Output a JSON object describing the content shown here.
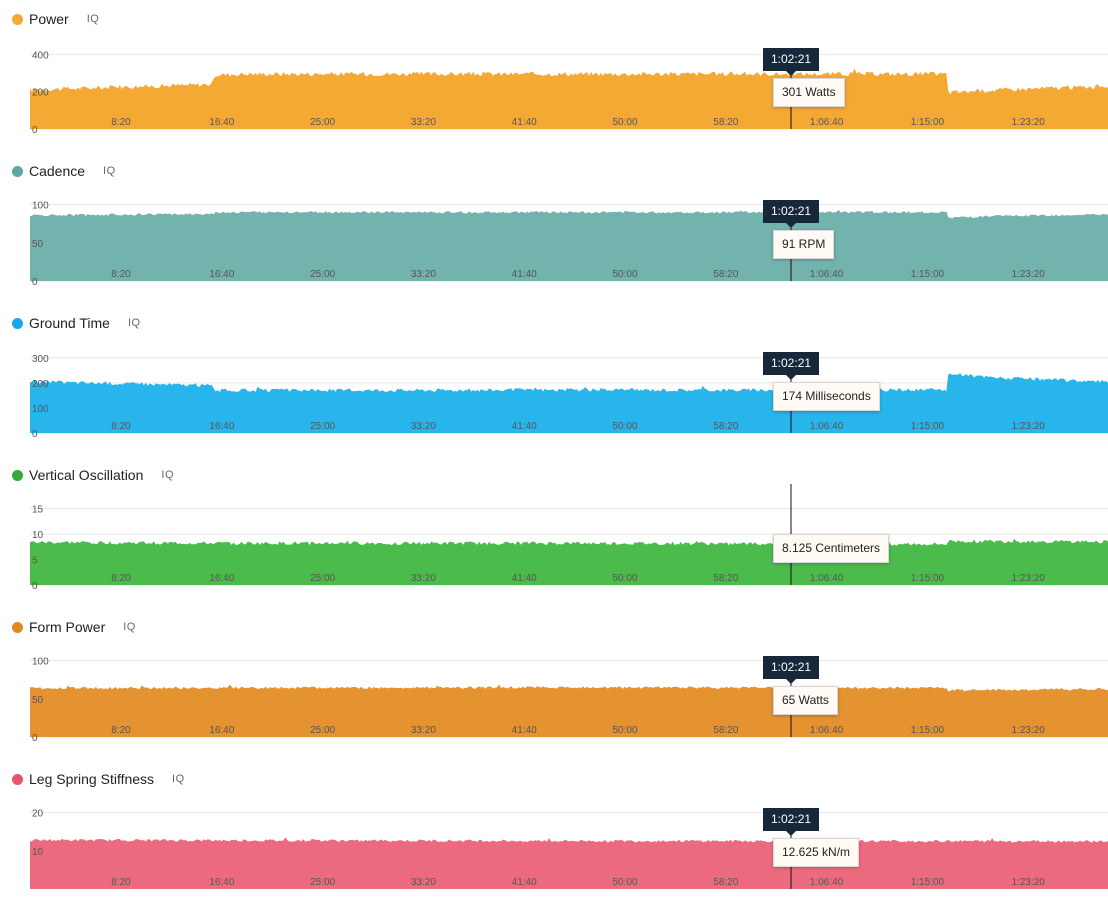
{
  "cursor_time": "1:02:21",
  "iq_label": "IQ",
  "x_ticks": [
    "8:20",
    "16:40",
    "25:00",
    "33:20",
    "41:40",
    "50:00",
    "58:20",
    "1:06:40",
    "1:15:00",
    "1:23:20"
  ],
  "panels": [
    {
      "id": "power",
      "title": "Power",
      "color": "#f5a935",
      "dot_color": "#f5a935",
      "y_ticks": [
        0,
        200,
        400
      ],
      "y_max": 450,
      "show_tip": true,
      "value_text": "301 Watts",
      "profile": [
        [
          0,
          210
        ],
        [
          0.17,
          240
        ],
        [
          0.171,
          290
        ],
        [
          0.2,
          295
        ],
        [
          0.5,
          295
        ],
        [
          0.85,
          295
        ],
        [
          0.851,
          195
        ],
        [
          0.9,
          210
        ],
        [
          1.0,
          230
        ]
      ],
      "noise": 12
    },
    {
      "id": "cadence",
      "title": "Cadence",
      "color": "#72b3ad",
      "dot_color": "#5ea8a2",
      "y_ticks": [
        0,
        50,
        100
      ],
      "y_max": 110,
      "show_tip": true,
      "value_text": "91 RPM",
      "profile": [
        [
          0,
          86
        ],
        [
          0.17,
          88
        ],
        [
          0.171,
          90
        ],
        [
          0.85,
          90
        ],
        [
          0.851,
          83
        ],
        [
          0.9,
          85
        ],
        [
          1.0,
          87
        ]
      ],
      "noise": 1.5
    },
    {
      "id": "ground_time",
      "title": "Ground Time",
      "color": "#27b5ec",
      "dot_color": "#1aa9e8",
      "y_ticks": [
        0,
        100,
        200,
        300
      ],
      "y_max": 335,
      "show_tip": true,
      "value_text": "174 Milliseconds",
      "profile": [
        [
          0,
          205
        ],
        [
          0.17,
          190
        ],
        [
          0.171,
          170
        ],
        [
          0.5,
          172
        ],
        [
          0.85,
          172
        ],
        [
          0.851,
          235
        ],
        [
          0.9,
          220
        ],
        [
          1.0,
          205
        ]
      ],
      "noise": 7
    },
    {
      "id": "vertical_oscillation",
      "title": "Vertical Oscillation",
      "color": "#4bbb4b",
      "dot_color": "#3aa83a",
      "y_ticks": [
        0,
        5,
        10,
        15
      ],
      "y_max": 16.5,
      "show_tip": false,
      "value_text": "8.125 Centimeters",
      "profile": [
        [
          0,
          8.4
        ],
        [
          0.17,
          8.2
        ],
        [
          0.5,
          8.2
        ],
        [
          0.85,
          8.0
        ],
        [
          0.851,
          8.6
        ],
        [
          1.0,
          8.5
        ]
      ],
      "noise": 0.35
    },
    {
      "id": "form_power",
      "title": "Form Power",
      "color": "#e59230",
      "dot_color": "#e08a22",
      "y_ticks": [
        0,
        50,
        100
      ],
      "y_max": 110,
      "show_tip": true,
      "value_text": "65 Watts",
      "profile": [
        [
          0,
          64
        ],
        [
          0.5,
          65
        ],
        [
          0.85,
          64
        ],
        [
          0.851,
          61
        ],
        [
          1.0,
          63
        ]
      ],
      "noise": 1.6
    },
    {
      "id": "leg_spring_stiffness",
      "title": "Leg Spring Stiffness",
      "color": "#ec6a7d",
      "dot_color": "#e65569",
      "y_ticks": [
        10,
        20
      ],
      "y_max": 22,
      "show_tip": true,
      "value_text": "12.625 kN/m",
      "profile": [
        [
          0,
          12.8
        ],
        [
          0.5,
          12.6
        ],
        [
          1.0,
          12.5
        ]
      ],
      "noise": 0.35
    }
  ]
}
